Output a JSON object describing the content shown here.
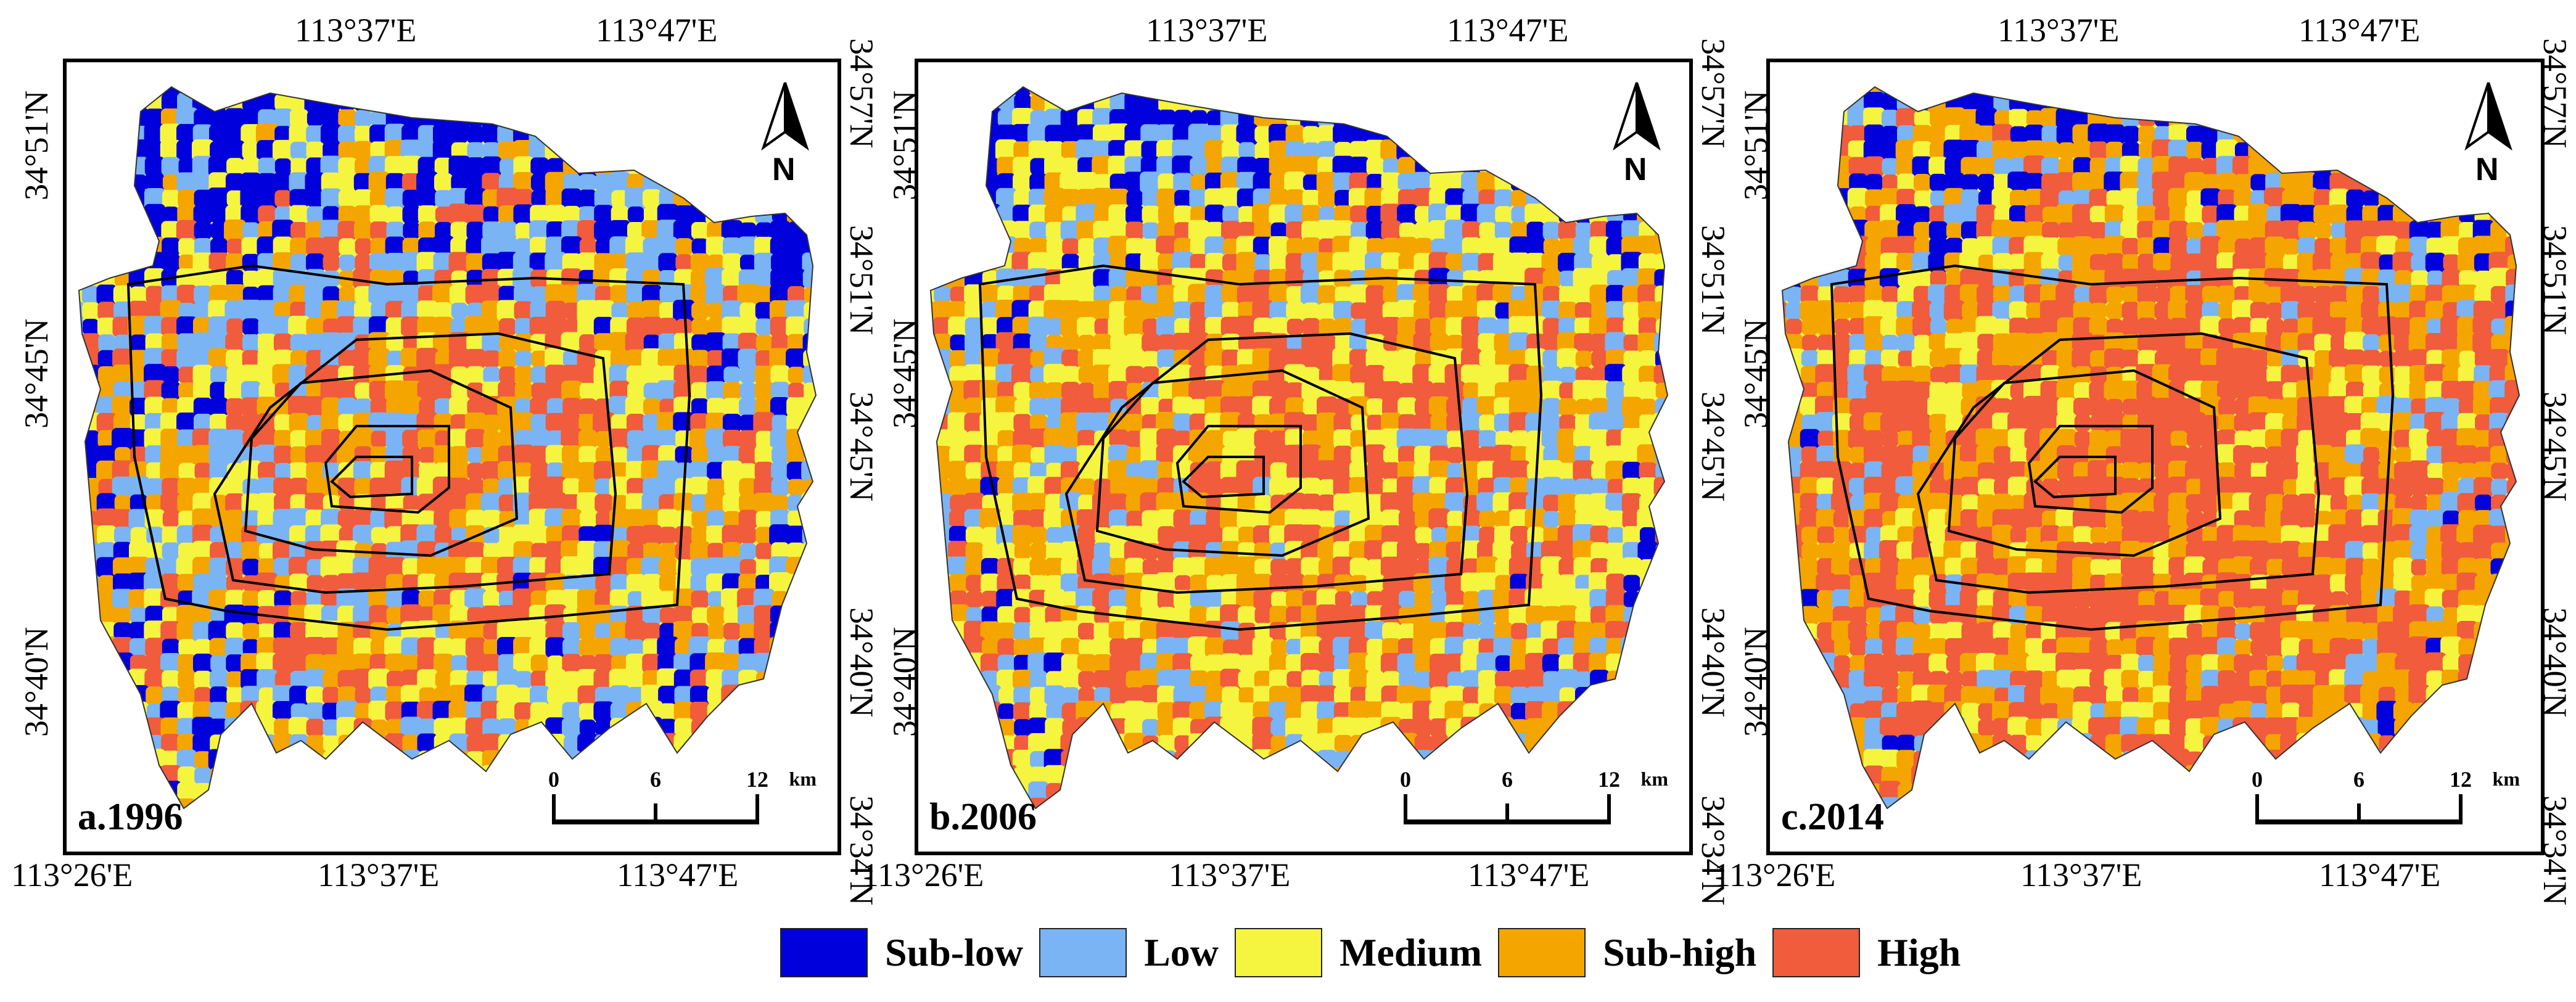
{
  "legend": [
    {
      "label": "Sub-low",
      "color": "#0000dc"
    },
    {
      "label": "Low",
      "color": "#7ab4f5"
    },
    {
      "label": "Medium",
      "color": "#f5f540"
    },
    {
      "label": "Sub-high",
      "color": "#f5a500"
    },
    {
      "label": "High",
      "color": "#f05c3c"
    }
  ],
  "coords": {
    "top_lon_1": "113°37'E",
    "top_lon_2": "113°47'E",
    "bottom_lon_1": "113°26'E",
    "bottom_lon_2": "113°37'E",
    "bottom_lon_3": "113°47'E",
    "lat_57": "34°57'N",
    "lat_51": "34°51'N",
    "lat_45": "34°45'N",
    "lat_40": "34°40'N",
    "lat_34": "34°34'N"
  },
  "panels": [
    {
      "label": "a.1996",
      "color_weights": {
        "Sub-low": 0.22,
        "Low": 0.22,
        "Medium": 0.22,
        "Sub-high": 0.2,
        "High": 0.14
      }
    },
    {
      "label": "b.2006",
      "color_weights": {
        "Sub-low": 0.12,
        "Low": 0.2,
        "Medium": 0.28,
        "Sub-high": 0.24,
        "High": 0.16
      }
    },
    {
      "label": "c.2014",
      "color_weights": {
        "Sub-low": 0.08,
        "Low": 0.14,
        "Medium": 0.14,
        "Sub-high": 0.3,
        "High": 0.34
      }
    }
  ],
  "north_arrow": {
    "letter": "N"
  },
  "scalebar": {
    "ticks": [
      "0",
      "6",
      "12"
    ],
    "unit": "km"
  }
}
